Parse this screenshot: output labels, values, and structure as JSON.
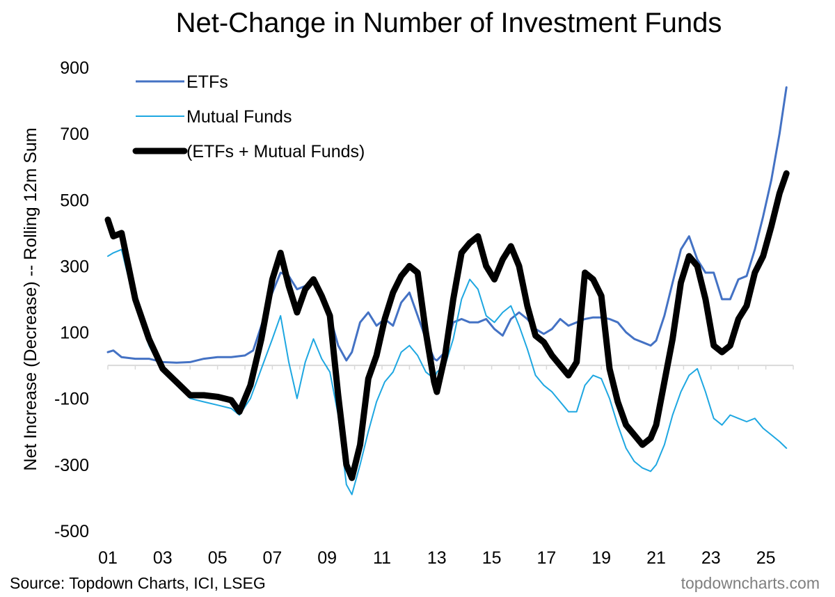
{
  "chart_data": {
    "type": "line",
    "title": "Net-Change in Number of Investment Funds",
    "xlabel": "",
    "ylabel": "Net Increase (Decrease) -- Rolling 12m Sum",
    "ylim": [
      -500,
      900
    ],
    "yticks": [
      900,
      700,
      500,
      300,
      100,
      -100,
      -300,
      -500
    ],
    "xlim": [
      2001,
      2026
    ],
    "xticks": [
      {
        "value": 2001,
        "label": "01"
      },
      {
        "value": 2003,
        "label": "03"
      },
      {
        "value": 2005,
        "label": "05"
      },
      {
        "value": 2007,
        "label": "07"
      },
      {
        "value": 2009,
        "label": "09"
      },
      {
        "value": 2011,
        "label": "11"
      },
      {
        "value": 2013,
        "label": "13"
      },
      {
        "value": 2015,
        "label": "15"
      },
      {
        "value": 2017,
        "label": "17"
      },
      {
        "value": 2019,
        "label": "19"
      },
      {
        "value": 2021,
        "label": "21"
      },
      {
        "value": 2023,
        "label": "23"
      },
      {
        "value": 2025,
        "label": "25"
      }
    ],
    "zero_line": 0,
    "legend_position": "top-left",
    "series": [
      {
        "name": "ETFs",
        "color": "#4472c4",
        "x": [
          2001.0,
          2001.2,
          2001.5,
          2002.0,
          2002.5,
          2003.0,
          2003.5,
          2004.0,
          2004.5,
          2005.0,
          2005.5,
          2006.0,
          2006.3,
          2006.6,
          2007.0,
          2007.3,
          2007.6,
          2007.9,
          2008.2,
          2008.5,
          2008.8,
          2009.1,
          2009.4,
          2009.7,
          2009.9,
          2010.2,
          2010.5,
          2010.8,
          2011.1,
          2011.4,
          2011.7,
          2012.0,
          2012.3,
          2012.6,
          2012.9,
          2013.0,
          2013.3,
          2013.6,
          2013.9,
          2014.2,
          2014.5,
          2014.8,
          2015.1,
          2015.4,
          2015.7,
          2016.0,
          2016.3,
          2016.6,
          2016.9,
          2017.2,
          2017.5,
          2017.8,
          2018.1,
          2018.4,
          2018.7,
          2019.0,
          2019.3,
          2019.6,
          2019.9,
          2020.2,
          2020.5,
          2020.8,
          2021.0,
          2021.3,
          2021.6,
          2021.9,
          2022.2,
          2022.5,
          2022.8,
          2023.1,
          2023.4,
          2023.7,
          2024.0,
          2024.3,
          2024.6,
          2024.9,
          2025.2,
          2025.5,
          2025.75
        ],
        "values": [
          40,
          45,
          25,
          20,
          20,
          10,
          8,
          10,
          20,
          25,
          25,
          30,
          45,
          120,
          220,
          280,
          270,
          230,
          240,
          250,
          200,
          150,
          60,
          15,
          40,
          130,
          160,
          120,
          140,
          120,
          190,
          220,
          150,
          80,
          20,
          15,
          40,
          130,
          140,
          130,
          130,
          140,
          110,
          90,
          140,
          160,
          140,
          110,
          95,
          110,
          140,
          120,
          130,
          140,
          145,
          145,
          140,
          130,
          100,
          80,
          70,
          60,
          75,
          150,
          250,
          350,
          390,
          320,
          280,
          280,
          200,
          200,
          260,
          270,
          350,
          450,
          560,
          700,
          840
        ]
      },
      {
        "name": "Mutual Funds",
        "color": "#1ea7e1",
        "x": [
          2001.0,
          2001.2,
          2001.5,
          2002.0,
          2002.5,
          2003.0,
          2003.5,
          2004.0,
          2004.5,
          2005.0,
          2005.5,
          2005.8,
          2006.2,
          2006.6,
          2007.0,
          2007.3,
          2007.6,
          2007.9,
          2008.2,
          2008.5,
          2008.8,
          2009.1,
          2009.4,
          2009.7,
          2009.9,
          2010.2,
          2010.5,
          2010.8,
          2011.1,
          2011.4,
          2011.7,
          2012.0,
          2012.3,
          2012.6,
          2012.9,
          2013.0,
          2013.3,
          2013.6,
          2013.9,
          2014.2,
          2014.5,
          2014.8,
          2015.1,
          2015.4,
          2015.7,
          2016.0,
          2016.3,
          2016.6,
          2016.9,
          2017.2,
          2017.5,
          2017.8,
          2018.1,
          2018.4,
          2018.7,
          2019.0,
          2019.3,
          2019.6,
          2019.9,
          2020.2,
          2020.5,
          2020.8,
          2021.0,
          2021.3,
          2021.6,
          2021.9,
          2022.2,
          2022.5,
          2022.8,
          2023.1,
          2023.4,
          2023.7,
          2024.0,
          2024.3,
          2024.6,
          2024.9,
          2025.2,
          2025.5,
          2025.75
        ],
        "values": [
          330,
          340,
          350,
          180,
          60,
          -20,
          -60,
          -100,
          -110,
          -120,
          -130,
          -150,
          -100,
          -10,
          80,
          150,
          10,
          -100,
          10,
          80,
          20,
          -20,
          -150,
          -360,
          -390,
          -300,
          -200,
          -110,
          -50,
          -20,
          40,
          60,
          30,
          -20,
          -40,
          -20,
          0,
          80,
          200,
          260,
          230,
          150,
          130,
          160,
          180,
          120,
          50,
          -30,
          -60,
          -80,
          -110,
          -140,
          -140,
          -60,
          -30,
          -40,
          -100,
          -180,
          -250,
          -290,
          -310,
          -320,
          -300,
          -240,
          -150,
          -80,
          -30,
          -10,
          -80,
          -160,
          -180,
          -150,
          -160,
          -170,
          -160,
          -190,
          -210,
          -230,
          -250
        ]
      },
      {
        "name": "(ETFs + Mutual Funds)",
        "color": "#000000",
        "x": [
          2001.0,
          2001.2,
          2001.5,
          2002.0,
          2002.5,
          2003.0,
          2003.5,
          2004.0,
          2004.5,
          2005.0,
          2005.5,
          2005.8,
          2006.2,
          2006.6,
          2007.0,
          2007.3,
          2007.6,
          2007.9,
          2008.2,
          2008.5,
          2008.8,
          2009.1,
          2009.4,
          2009.7,
          2009.9,
          2010.2,
          2010.5,
          2010.8,
          2011.1,
          2011.4,
          2011.7,
          2012.0,
          2012.3,
          2012.6,
          2012.9,
          2013.0,
          2013.3,
          2013.6,
          2013.9,
          2014.2,
          2014.5,
          2014.8,
          2015.1,
          2015.4,
          2015.7,
          2016.0,
          2016.3,
          2016.6,
          2016.9,
          2017.2,
          2017.5,
          2017.8,
          2018.1,
          2018.4,
          2018.7,
          2019.0,
          2019.3,
          2019.6,
          2019.9,
          2020.2,
          2020.5,
          2020.8,
          2021.0,
          2021.3,
          2021.6,
          2021.9,
          2022.2,
          2022.5,
          2022.8,
          2023.1,
          2023.4,
          2023.7,
          2024.0,
          2024.3,
          2024.6,
          2024.9,
          2025.2,
          2025.5,
          2025.75
        ],
        "values": [
          440,
          390,
          400,
          200,
          80,
          -10,
          -50,
          -90,
          -90,
          -95,
          -105,
          -140,
          -60,
          80,
          260,
          340,
          240,
          160,
          230,
          260,
          210,
          150,
          -90,
          -300,
          -340,
          -240,
          -40,
          30,
          140,
          220,
          270,
          300,
          280,
          100,
          -50,
          -80,
          30,
          200,
          340,
          370,
          390,
          300,
          260,
          320,
          360,
          300,
          180,
          90,
          70,
          30,
          0,
          -30,
          10,
          280,
          260,
          210,
          -10,
          -110,
          -180,
          -210,
          -240,
          -220,
          -180,
          -50,
          80,
          250,
          330,
          300,
          200,
          60,
          40,
          60,
          140,
          180,
          280,
          330,
          420,
          520,
          580
        ]
      }
    ]
  },
  "footer": {
    "source": "Source: Topdown Charts, ICI, LSEG",
    "brand": "topdowncharts.com"
  }
}
